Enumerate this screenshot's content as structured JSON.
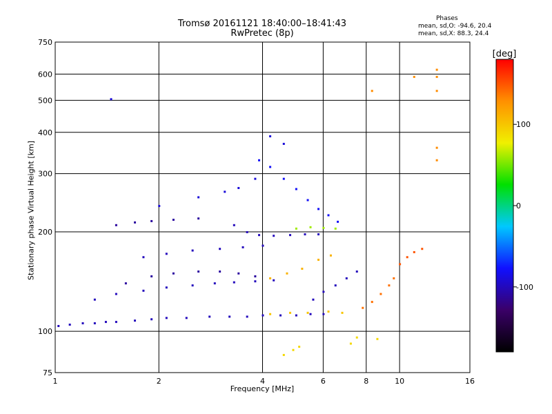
{
  "chart_data": {
    "type": "scatter",
    "title": "Tromsø 20161121 18:40:00–18:41:43",
    "subtitle": "RwPretec (8p)",
    "xlabel": "Frequency [MHz]",
    "ylabel": "Stationary phase Virtual Height [km]",
    "x_scale": "log",
    "y_scale": "log",
    "xlim": [
      1,
      16
    ],
    "ylim": [
      75,
      750
    ],
    "x_ticks": [
      1,
      2,
      4,
      6,
      8,
      10,
      16
    ],
    "y_ticks": [
      75,
      100,
      200,
      300,
      400,
      500,
      600,
      750
    ],
    "grid": true,
    "stats": {
      "header": "Phases",
      "o_mode": "mean, sd,O:  -94.6, 20.4",
      "x_mode": "mean, sd,X:  88.3, 24.4"
    },
    "colorbar": {
      "label": "[deg]",
      "range": [
        -180,
        180
      ],
      "ticks": [
        100,
        0,
        -100
      ],
      "colors": [
        "#000000",
        "#3a0068",
        "#1010ff",
        "#00c8ff",
        "#00e000",
        "#f0f000",
        "#ff9000",
        "#ff0000"
      ]
    },
    "traces": [
      {
        "phase": -100,
        "points": [
          [
            1.02,
            104
          ],
          [
            1.1,
            105
          ],
          [
            1.2,
            106
          ],
          [
            1.3,
            106
          ],
          [
            1.4,
            107
          ],
          [
            1.5,
            107
          ],
          [
            1.7,
            108
          ],
          [
            1.9,
            109
          ],
          [
            2.1,
            110
          ],
          [
            2.4,
            110
          ],
          [
            2.8,
            111
          ],
          [
            3.2,
            111
          ],
          [
            3.6,
            111
          ],
          [
            4.0,
            112
          ],
          [
            4.5,
            112
          ],
          [
            5.0,
            112
          ],
          [
            5.5,
            113
          ],
          [
            6.0,
            113
          ]
        ]
      },
      {
        "phase": 100,
        "points": [
          [
            4.2,
            113
          ],
          [
            4.8,
            114
          ],
          [
            5.4,
            114
          ],
          [
            6.2,
            115
          ],
          [
            6.8,
            114
          ]
        ]
      },
      {
        "phase": -100,
        "points": [
          [
            1.3,
            125
          ],
          [
            1.5,
            130
          ],
          [
            1.8,
            133
          ],
          [
            2.1,
            136
          ],
          [
            2.5,
            138
          ],
          [
            2.9,
            140
          ],
          [
            3.3,
            141
          ],
          [
            3.8,
            142
          ],
          [
            4.3,
            143
          ]
        ]
      },
      {
        "phase": -110,
        "points": [
          [
            1.6,
            140
          ],
          [
            1.9,
            147
          ],
          [
            2.2,
            150
          ],
          [
            2.6,
            152
          ],
          [
            3.0,
            152
          ],
          [
            3.4,
            150
          ],
          [
            3.8,
            147
          ]
        ]
      },
      {
        "phase": -100,
        "points": [
          [
            1.8,
            168
          ],
          [
            2.1,
            172
          ],
          [
            2.5,
            176
          ],
          [
            3.0,
            178
          ],
          [
            3.5,
            180
          ],
          [
            4.0,
            182
          ]
        ]
      },
      {
        "phase": -110,
        "points": [
          [
            1.5,
            210
          ],
          [
            1.7,
            214
          ],
          [
            1.9,
            216
          ],
          [
            2.2,
            218
          ],
          [
            2.6,
            220
          ]
        ]
      },
      {
        "phase": -100,
        "points": [
          [
            3.3,
            210
          ],
          [
            3.6,
            200
          ],
          [
            3.9,
            196
          ],
          [
            4.3,
            195
          ],
          [
            4.8,
            196
          ],
          [
            5.3,
            197
          ],
          [
            5.8,
            197
          ]
        ]
      },
      {
        "phase": -80,
        "points": [
          [
            3.9,
            330
          ],
          [
            4.2,
            315
          ],
          [
            4.6,
            290
          ],
          [
            5.0,
            270
          ],
          [
            5.4,
            250
          ],
          [
            5.8,
            235
          ],
          [
            6.2,
            225
          ],
          [
            6.6,
            215
          ]
        ]
      },
      {
        "phase": 110,
        "points": [
          [
            4.2,
            145
          ],
          [
            4.7,
            150
          ],
          [
            5.2,
            155
          ],
          [
            5.8,
            165
          ],
          [
            6.3,
            170
          ]
        ]
      },
      {
        "phase": 60,
        "points": [
          [
            5.0,
            205
          ],
          [
            5.5,
            207
          ],
          [
            6.0,
            206
          ],
          [
            6.5,
            205
          ]
        ]
      },
      {
        "phase": -100,
        "points": [
          [
            5.6,
            125
          ],
          [
            6.0,
            132
          ],
          [
            6.5,
            138
          ],
          [
            7.0,
            145
          ],
          [
            7.5,
            152
          ]
        ]
      },
      {
        "phase": 140,
        "points": [
          [
            7.8,
            118
          ],
          [
            8.3,
            123
          ],
          [
            8.8,
            130
          ],
          [
            9.3,
            138
          ],
          [
            9.6,
            145
          ]
        ]
      },
      {
        "phase": 150,
        "points": [
          [
            10.0,
            160
          ],
          [
            10.5,
            168
          ],
          [
            11.0,
            174
          ],
          [
            11.6,
            178
          ]
        ]
      },
      {
        "phase": 130,
        "points": [
          [
            12.8,
            535
          ],
          [
            12.8,
            590
          ],
          [
            12.8,
            620
          ],
          [
            12.8,
            360
          ],
          [
            12.8,
            330
          ],
          [
            11.0,
            590
          ],
          [
            8.3,
            535
          ]
        ]
      },
      {
        "phase": -90,
        "points": [
          [
            1.45,
            505
          ],
          [
            2.0,
            240
          ],
          [
            2.6,
            255
          ],
          [
            3.1,
            265
          ],
          [
            3.4,
            272
          ],
          [
            3.8,
            290
          ],
          [
            4.2,
            390
          ],
          [
            4.6,
            370
          ]
        ]
      },
      {
        "phase": 90,
        "points": [
          [
            4.6,
            85
          ],
          [
            4.9,
            88
          ],
          [
            5.1,
            90
          ],
          [
            7.2,
            92
          ],
          [
            7.5,
            96
          ],
          [
            8.6,
            95
          ]
        ]
      }
    ]
  }
}
